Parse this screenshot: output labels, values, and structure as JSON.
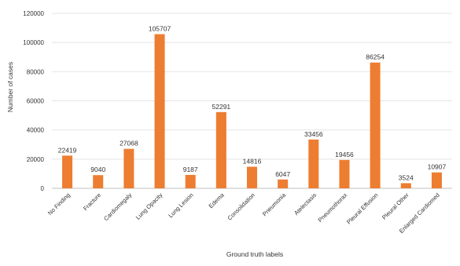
{
  "chart_data": {
    "type": "bar",
    "title": "",
    "xlabel": "Ground truth labels",
    "ylabel": "Number of cases",
    "ylim": [
      0,
      120000
    ],
    "yticks": [
      0,
      20000,
      40000,
      60000,
      80000,
      100000,
      120000
    ],
    "grid": true,
    "bar_color": "#ED7D31",
    "categories": [
      "No Finding",
      "Fracture",
      "Cardiomegaly",
      "Lung Opacity",
      "Lung Lesion",
      "Edema",
      "Consolidation",
      "Pneumonia",
      "Atelectasis",
      "Pneumothorax",
      "Pleural Effusion",
      "Pleural Other",
      "Enlarged Cardiomed"
    ],
    "values": [
      22419,
      9040,
      27068,
      105707,
      9187,
      52291,
      14816,
      6047,
      33456,
      19456,
      86254,
      3524,
      10907
    ]
  }
}
